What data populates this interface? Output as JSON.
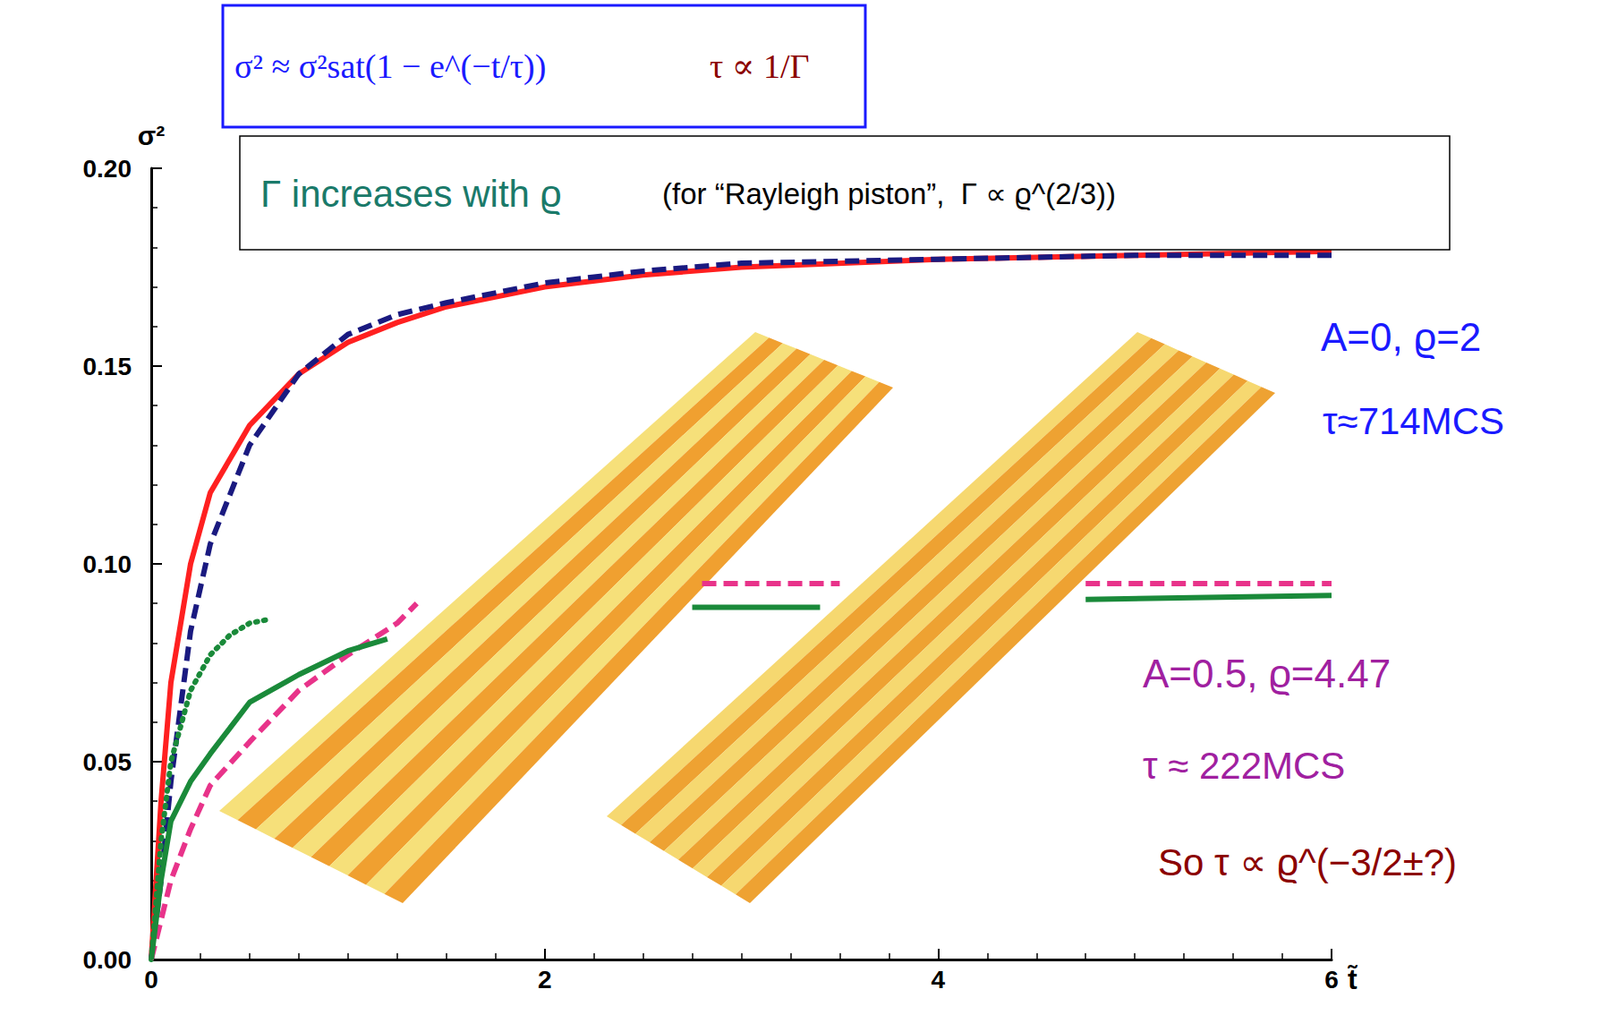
{
  "chart_data": {
    "type": "line",
    "x_label": "t̃",
    "y_label": "σ²",
    "xlim": [
      0,
      6
    ],
    "xticks": [
      0,
      2,
      4,
      6
    ],
    "ylim": [
      0,
      0.2
    ],
    "yticks": [
      {
        "value": 0,
        "label": "0.00"
      },
      {
        "value": 0.05,
        "label": "0.05"
      },
      {
        "value": 0.1,
        "label": "0.10"
      },
      {
        "value": 0.15,
        "label": "0.15"
      },
      {
        "value": 0.2,
        "label": "0.20"
      }
    ],
    "grid": false,
    "series": [
      {
        "color": "#ff2020",
        "line_style": "solid",
        "x": [
          0,
          0.05,
          0.1,
          0.2,
          0.3,
          0.5,
          0.75,
          1,
          1.25,
          1.5,
          2,
          2.5,
          3,
          4,
          5,
          6
        ],
        "values": [
          0,
          0.04,
          0.07,
          0.1,
          0.118,
          0.135,
          0.148,
          0.156,
          0.161,
          0.165,
          0.17,
          0.173,
          0.175,
          0.177,
          0.178,
          0.179
        ]
      },
      {
        "color": "#1a1a80",
        "line_style": "dashed",
        "x": [
          0,
          0.05,
          0.1,
          0.2,
          0.3,
          0.5,
          0.75,
          1,
          1.25,
          1.5,
          2,
          2.5,
          3,
          4,
          5,
          6
        ],
        "values": [
          0,
          0.02,
          0.045,
          0.083,
          0.105,
          0.13,
          0.148,
          0.158,
          0.163,
          0.166,
          0.171,
          0.174,
          0.176,
          0.177,
          0.178,
          0.178
        ]
      },
      {
        "color": "#1a8a3a",
        "line_style": "dotted",
        "x": [
          0,
          0.05,
          0.1,
          0.2,
          0.3,
          0.4,
          0.5,
          0.6
        ],
        "values": [
          0,
          0.03,
          0.05,
          0.068,
          0.077,
          0.082,
          0.085,
          0.086
        ]
      },
      {
        "color": "#e8338a",
        "line_style": "dashed",
        "x": [
          0,
          0.1,
          0.2,
          0.3,
          0.5,
          0.75,
          1,
          1.25,
          1.35,
          2,
          2.8,
          3.5,
          4,
          4.75,
          6
        ],
        "values": [
          0,
          0.02,
          0.033,
          0.044,
          0.055,
          0.068,
          0.077,
          0.085,
          0.09,
          null,
          0.095,
          0.095,
          null,
          0.095,
          0.095
        ]
      },
      {
        "color": "#1a8a3a",
        "line_style": "solid",
        "x": [
          0,
          0.05,
          0.1,
          0.2,
          0.3,
          0.5,
          0.75,
          1,
          1.2,
          2,
          2.75,
          3.4,
          4,
          4.75,
          6
        ],
        "values": [
          0,
          0.02,
          0.035,
          0.045,
          0.052,
          0.065,
          0.072,
          0.078,
          0.081,
          null,
          0.089,
          0.089,
          null,
          0.091,
          0.092
        ]
      }
    ],
    "annotations": [
      {
        "text": "σ² ≈ σ²sat(1 − e^(−t/τ))",
        "color": "#1a1aff"
      },
      {
        "text": "τ ∝ 1/Γ",
        "color": "#8b0000"
      },
      {
        "text": "Γ increases with ϱ",
        "color": "#1a7a6a"
      },
      {
        "text": "(for “Rayleigh piston”,  Γ ∝ ϱ^(2/3))",
        "color": "#000000"
      },
      {
        "text": "A=0, ϱ=2",
        "color": "#1a1aff"
      },
      {
        "text": "τ≈714MCS",
        "color": "#1a1aff"
      },
      {
        "text": "A=0.5, ϱ=4.47",
        "color": "#a020a0"
      },
      {
        "text": "τ ≈ 222MCS",
        "color": "#a020a0"
      },
      {
        "text": "So τ ∝ ϱ^(−3/2±?)",
        "color": "#8b0000"
      }
    ]
  }
}
